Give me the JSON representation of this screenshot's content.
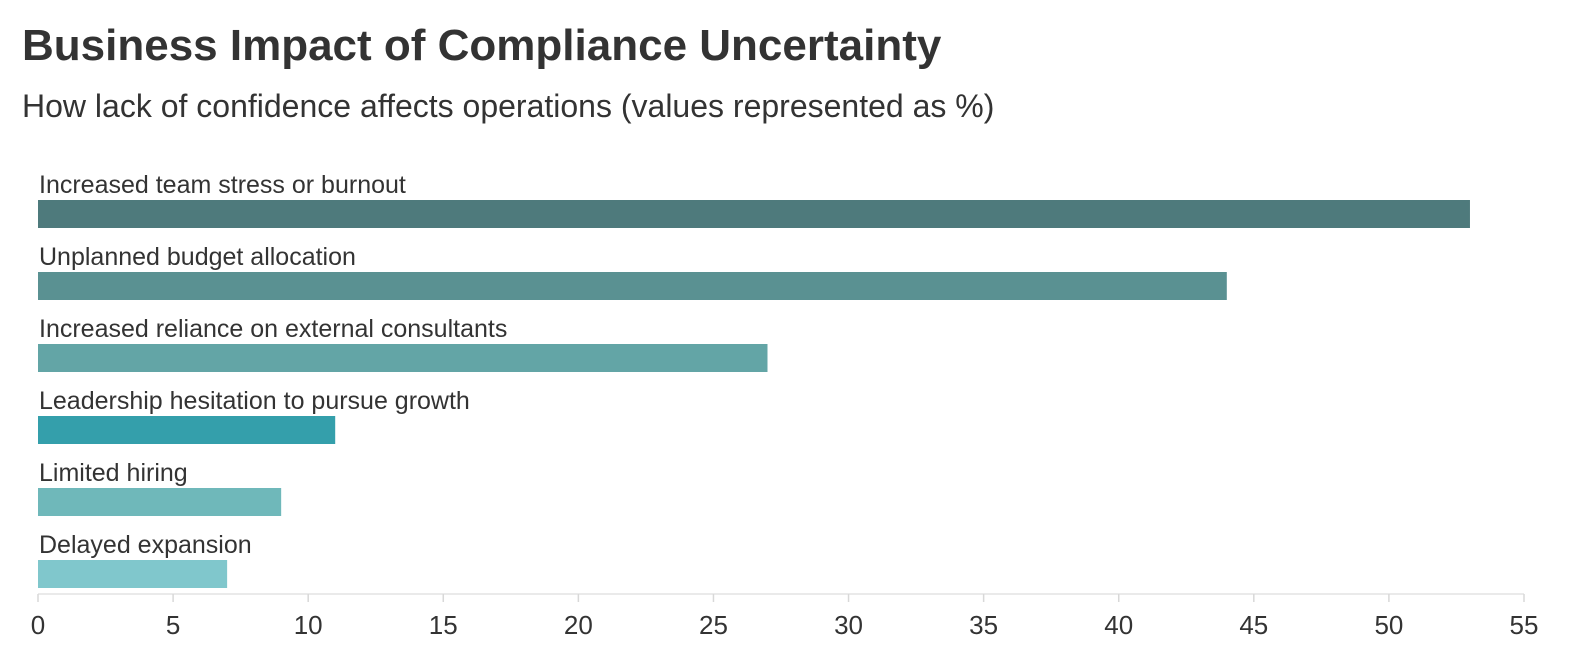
{
  "title": "Business Impact of Compliance Uncertainty",
  "subtitle": "How lack of confidence affects operations (values represented as %)",
  "chart_data": {
    "type": "bar",
    "orientation": "horizontal",
    "title": "Business Impact of Compliance Uncertainty",
    "subtitle": "How lack of confidence affects operations (values represented as %)",
    "xlabel": "",
    "ylabel": "",
    "categories": [
      "Increased team stress or burnout",
      "Unplanned budget allocation",
      "Increased reliance on external consultants",
      "Leadership hesitation to pursue growth",
      "Limited hiring",
      "Delayed expansion"
    ],
    "values": [
      53,
      44,
      27,
      11,
      9,
      7
    ],
    "colors": [
      "#4e7a7c",
      "#5a9192",
      "#63a5a6",
      "#349fab",
      "#6fb8ba",
      "#80c7cc"
    ],
    "xlim": [
      0,
      55
    ],
    "xticks": [
      0,
      5,
      10,
      15,
      20,
      25,
      30,
      35,
      40,
      45,
      50,
      55
    ],
    "grid": false,
    "legend": "none"
  }
}
